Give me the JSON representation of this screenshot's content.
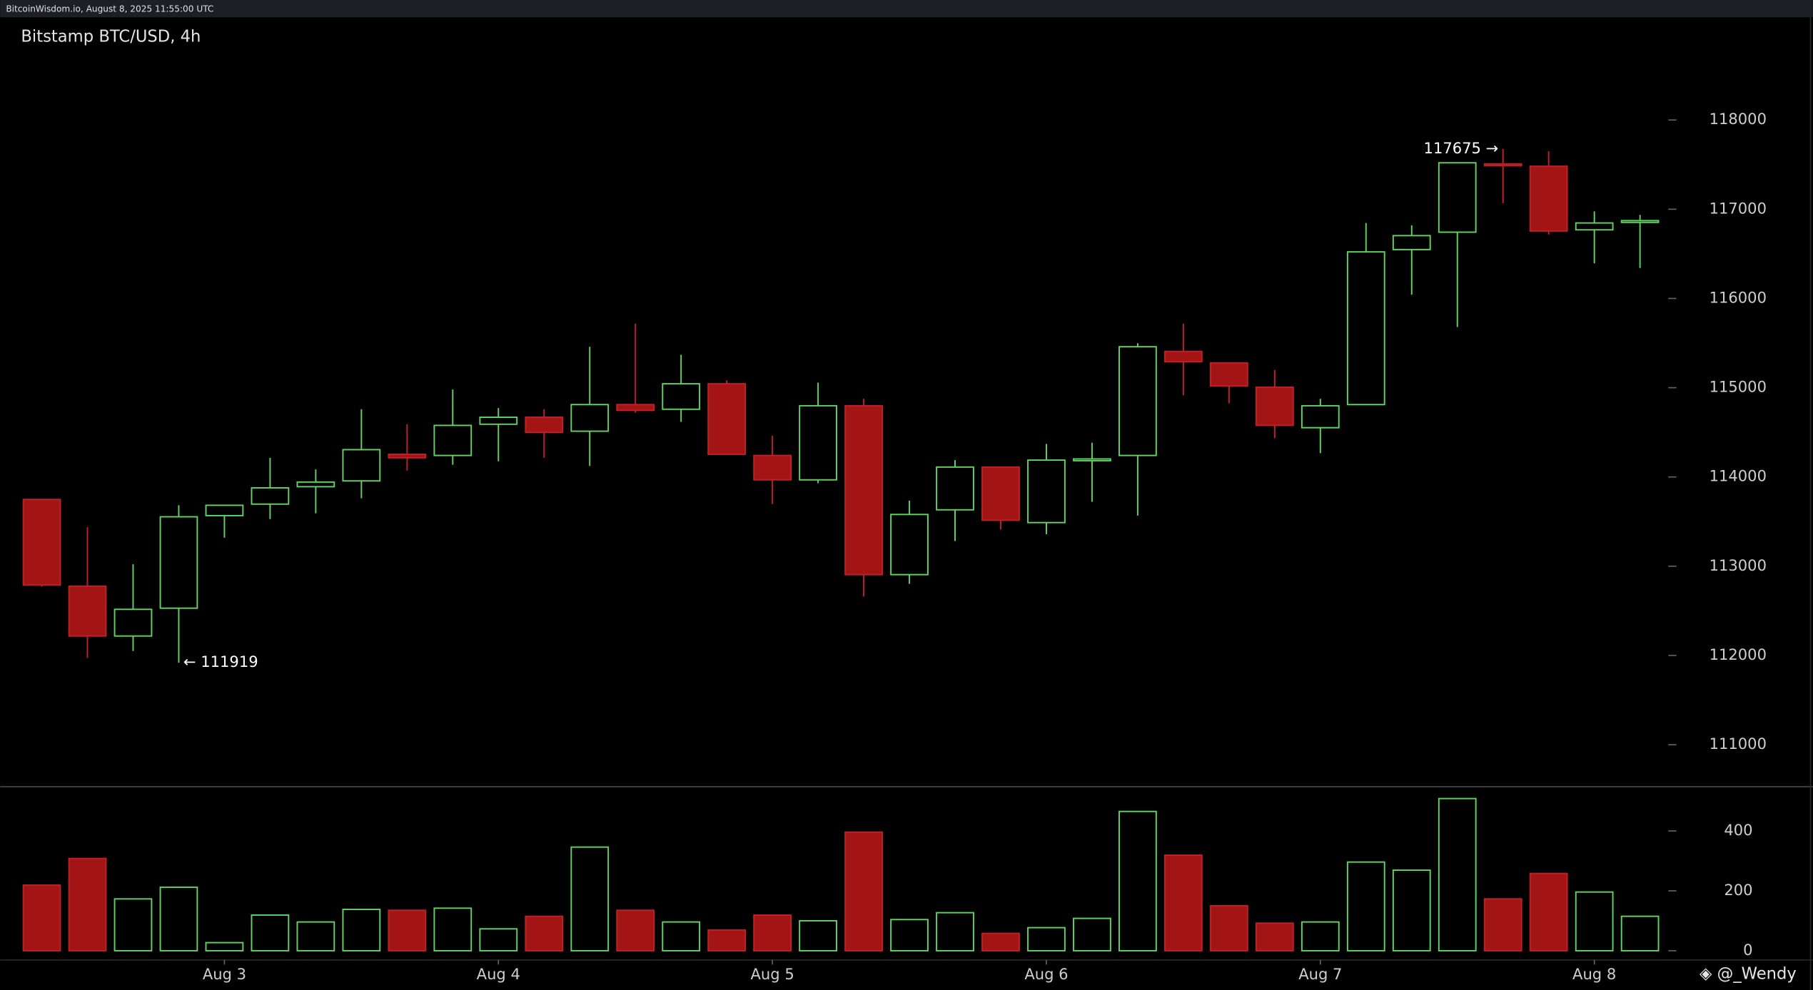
{
  "header": "BitcoinWisdom.io, August 8, 2025 11:55:00 UTC",
  "watermark": "@_Wendy",
  "chart_data": {
    "type": "candlestick",
    "title": "Bitstamp BTC/USD, 4h",
    "categories": [
      null,
      null,
      null,
      null,
      "Aug 3",
      null,
      null,
      null,
      null,
      null,
      "Aug 4",
      null,
      null,
      null,
      null,
      null,
      "Aug 5",
      null,
      null,
      null,
      null,
      null,
      "Aug 6",
      null,
      null,
      null,
      null,
      null,
      "Aug 7",
      null,
      null,
      null,
      null,
      null,
      "Aug 8",
      null
    ],
    "open": [
      113748,
      112776,
      112218,
      112530,
      113567,
      113696,
      113891,
      113956,
      114254,
      114241,
      114591,
      114669,
      114513,
      114811,
      114759,
      115044,
      114241,
      113968,
      114798,
      112906,
      113632,
      114111,
      113489,
      114189,
      114241,
      115407,
      115278,
      115006,
      114552,
      114811,
      116548,
      116743,
      117507,
      117481,
      116769,
      116859
    ],
    "high": [
      113750,
      113437,
      113022,
      113683,
      113683,
      114215,
      114085,
      114759,
      114591,
      114980,
      114772,
      114759,
      115459,
      115718,
      115369,
      115083,
      114461,
      115057,
      114876,
      113735,
      114189,
      114111,
      114370,
      114383,
      115498,
      115718,
      115278,
      115200,
      114876,
      116846,
      116820,
      117520,
      117675,
      117650,
      116976,
      116937
    ],
    "low": [
      112770,
      111972,
      112050,
      111919,
      113320,
      113528,
      113593,
      113761,
      114072,
      114137,
      114176,
      114215,
      114124,
      114720,
      114617,
      114254,
      113696,
      113930,
      112659,
      112802,
      113282,
      113411,
      113359,
      113722,
      113567,
      114915,
      114824,
      114435,
      114267,
      114811,
      116043,
      115680,
      117067,
      116717,
      116393,
      116341
    ],
    "close": [
      112789,
      112218,
      112517,
      113554,
      113683,
      113878,
      113943,
      114306,
      114215,
      114578,
      114669,
      114500,
      114811,
      114746,
      115044,
      114254,
      113968,
      114798,
      112906,
      113580,
      114111,
      113515,
      114189,
      114202,
      115459,
      115291,
      115019,
      114578,
      114798,
      116522,
      116704,
      117520,
      117494,
      116756,
      116846,
      116872
    ],
    "ylim": [
      110530,
      119150
    ],
    "yticks": [
      111000,
      112000,
      113000,
      114000,
      115000,
      116000,
      117000,
      118000
    ],
    "high_label": {
      "value": 117675,
      "label": "117675 →"
    },
    "low_label": {
      "value": 111919,
      "label": "← 111919"
    },
    "up_color": "#5fd35f",
    "down_color": "#a31515",
    "volume": {
      "values": [
        219,
        308,
        173,
        212,
        27,
        119,
        96,
        138,
        135,
        142,
        73,
        115,
        346,
        135,
        96,
        69,
        119,
        100,
        396,
        104,
        127,
        58,
        77,
        108,
        465,
        319,
        150,
        92,
        96,
        296,
        269,
        508,
        173,
        258,
        196,
        115
      ],
      "ylim": [
        0,
        540
      ],
      "yticks": [
        0,
        200,
        400
      ]
    }
  }
}
